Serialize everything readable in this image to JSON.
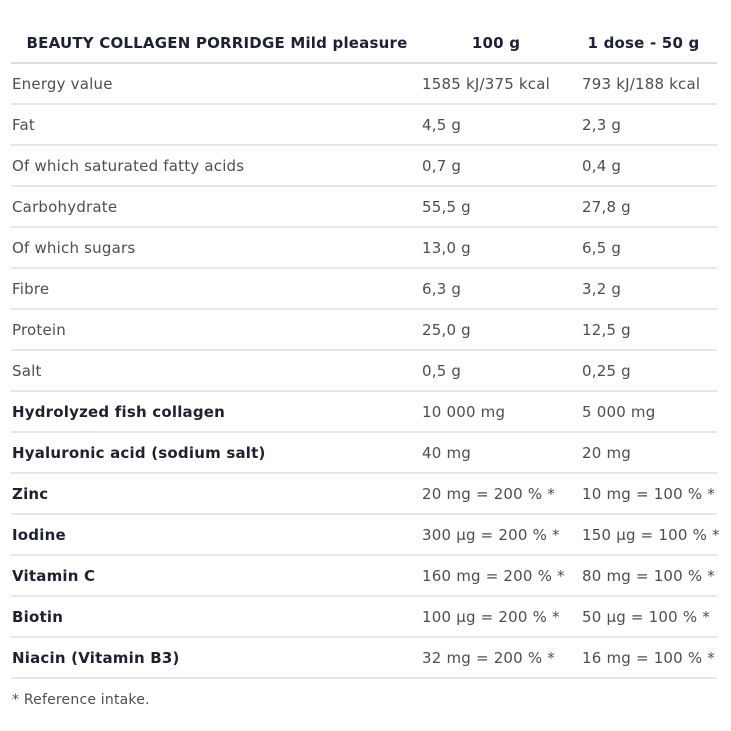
{
  "colors": {
    "text_regular": "#4a4e55",
    "text_bold": "#1d2230",
    "divider": "#e7e7e7",
    "background": "#ffffff"
  },
  "table": {
    "header": {
      "title": "BEAUTY COLLAGEN PORRIDGE Mild pleasure",
      "col_100g": "100 g",
      "col_dose": "1 dose - 50 g"
    },
    "rows": [
      {
        "label": "Energy value",
        "per_100g": "1585 kJ/375 kcal",
        "per_dose": "793 kJ/188 kcal",
        "emphasis": false
      },
      {
        "label": "Fat",
        "per_100g": "4,5 g",
        "per_dose": "2,3 g",
        "emphasis": false
      },
      {
        "label": "Of which saturated fatty acids",
        "per_100g": "0,7 g",
        "per_dose": "0,4 g",
        "emphasis": false
      },
      {
        "label": "Carbohydrate",
        "per_100g": "55,5 g",
        "per_dose": "27,8 g",
        "emphasis": false
      },
      {
        "label": "Of which sugars",
        "per_100g": "13,0 g",
        "per_dose": "6,5 g",
        "emphasis": false
      },
      {
        "label": "Fibre",
        "per_100g": "6,3 g",
        "per_dose": "3,2 g",
        "emphasis": false
      },
      {
        "label": "Protein",
        "per_100g": "25,0 g",
        "per_dose": "12,5 g",
        "emphasis": false
      },
      {
        "label": "Salt",
        "per_100g": "0,5 g",
        "per_dose": "0,25 g",
        "emphasis": false
      },
      {
        "label": "Hydrolyzed fish collagen",
        "per_100g": "10 000 mg",
        "per_dose": "5 000 mg",
        "emphasis": true
      },
      {
        "label": "Hyaluronic acid (sodium salt)",
        "per_100g": "40 mg",
        "per_dose": "20 mg",
        "emphasis": true
      },
      {
        "label": "Zinc",
        "per_100g": "20 mg = 200 % *",
        "per_dose": "10 mg = 100 % *",
        "emphasis": true
      },
      {
        "label": "Iodine",
        "per_100g": "300 µg = 200 % *",
        "per_dose": "150 µg = 100 % *",
        "emphasis": true
      },
      {
        "label": "Vitamin C",
        "per_100g": "160 mg = 200 % *",
        "per_dose": "80 mg = 100 % *",
        "emphasis": true
      },
      {
        "label": "Biotin",
        "per_100g": "100 µg = 200 % *",
        "per_dose": "50 µg = 100 % *",
        "emphasis": true
      },
      {
        "label": "Niacin (Vitamin B3)",
        "per_100g": "32 mg = 200 % *",
        "per_dose": "16 mg = 100 % *",
        "emphasis": true
      }
    ],
    "footnote": "* Reference intake."
  }
}
